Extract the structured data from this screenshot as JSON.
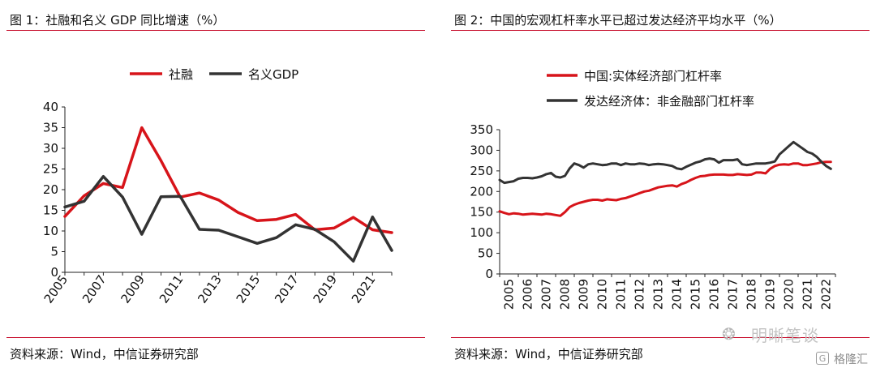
{
  "figures": [
    {
      "title": "图 1：社融和名义 GDP 同比增速（%）",
      "source": "资料来源：Wind，中信证券研究部"
    },
    {
      "title": "图 2：中国的宏观杠杆率水平已超过发达经济平均水平（%）",
      "source": "资料来源：Wind，中信证券研究部"
    }
  ],
  "watermark": {
    "icon": "wechat-icon",
    "text": "明晰笔谈"
  },
  "brand": {
    "icon": "gelonghui-logo-icon",
    "text": "格隆汇"
  },
  "chart_data": [
    {
      "type": "line",
      "title": "图 1：社融和名义 GDP 同比增速（%）",
      "xlabel": "",
      "ylabel": "",
      "ylim": [
        0,
        40
      ],
      "yticks": [
        0,
        5,
        10,
        15,
        20,
        25,
        30,
        35,
        40
      ],
      "xlim": [
        2005,
        2022
      ],
      "xticks": [
        "2005",
        "2007",
        "2009",
        "2011",
        "2013",
        "2015",
        "2017",
        "2019",
        "2021"
      ],
      "legend_position": "top",
      "grid": false,
      "x": [
        2005,
        2006,
        2007,
        2008,
        2009,
        2010,
        2011,
        2012,
        2013,
        2014,
        2015,
        2016,
        2017,
        2018,
        2019,
        2020,
        2021,
        2022
      ],
      "series": [
        {
          "name": "社融",
          "color": "#d7141a",
          "values": [
            13.5,
            18.5,
            21.5,
            20.5,
            35.0,
            27.0,
            18.2,
            19.2,
            17.5,
            14.5,
            12.5,
            12.8,
            14.0,
            10.3,
            10.7,
            13.3,
            10.3,
            9.6
          ]
        },
        {
          "name": "名义GDP",
          "color": "#333333",
          "values": [
            15.8,
            17.2,
            23.2,
            18.2,
            9.2,
            18.3,
            18.4,
            10.4,
            10.2,
            8.6,
            7.0,
            8.4,
            11.5,
            10.4,
            7.4,
            2.7,
            13.4,
            5.3
          ]
        }
      ]
    },
    {
      "type": "line",
      "title": "图 2：中国的宏观杠杆率水平已超过发达经济平均水平（%）",
      "xlabel": "",
      "ylabel": "",
      "ylim": [
        0,
        350
      ],
      "yticks": [
        0,
        50,
        100,
        150,
        200,
        250,
        300,
        350
      ],
      "xlim": [
        2005,
        2023
      ],
      "xticks": [
        "2005",
        "2006",
        "2007",
        "2008",
        "2009",
        "2010",
        "2011",
        "2012",
        "2013",
        "2014",
        "2015",
        "2016",
        "2017",
        "2018",
        "2019",
        "2020",
        "2021",
        "2022"
      ],
      "legend_position": "top-left",
      "grid": false,
      "x": [
        2005.0,
        2005.25,
        2005.5,
        2005.75,
        2006.0,
        2006.25,
        2006.5,
        2006.75,
        2007.0,
        2007.25,
        2007.5,
        2007.75,
        2008.0,
        2008.25,
        2008.5,
        2008.75,
        2009.0,
        2009.25,
        2009.5,
        2009.75,
        2010.0,
        2010.25,
        2010.5,
        2010.75,
        2011.0,
        2011.25,
        2011.5,
        2011.75,
        2012.0,
        2012.25,
        2012.5,
        2012.75,
        2013.0,
        2013.25,
        2013.5,
        2013.75,
        2014.0,
        2014.25,
        2014.5,
        2014.75,
        2015.0,
        2015.25,
        2015.5,
        2015.75,
        2016.0,
        2016.25,
        2016.5,
        2016.75,
        2017.0,
        2017.25,
        2017.5,
        2017.75,
        2018.0,
        2018.25,
        2018.5,
        2018.75,
        2019.0,
        2019.25,
        2019.5,
        2019.75,
        2020.0,
        2020.25,
        2020.5,
        2020.75,
        2021.0,
        2021.25,
        2021.5,
        2021.75,
        2022.0,
        2022.25,
        2022.5,
        2022.75
      ],
      "series": [
        {
          "name": "中国:实体经济部门杠杆率",
          "color": "#d7141a",
          "values": [
            152,
            148,
            145,
            147,
            146,
            144,
            145,
            146,
            145,
            144,
            146,
            145,
            143,
            141,
            150,
            162,
            168,
            172,
            175,
            178,
            180,
            180,
            178,
            181,
            180,
            179,
            182,
            184,
            188,
            192,
            196,
            200,
            202,
            206,
            210,
            212,
            214,
            215,
            212,
            218,
            222,
            228,
            233,
            237,
            238,
            240,
            241,
            241,
            241,
            240,
            240,
            242,
            241,
            240,
            241,
            246,
            246,
            244,
            255,
            262,
            265,
            266,
            265,
            268,
            268,
            264,
            264,
            266,
            268,
            271,
            272,
            272
          ]
        },
        {
          "name": "发达经济体：非金融部门杠杆率",
          "color": "#333333",
          "values": [
            228,
            221,
            223,
            225,
            231,
            233,
            233,
            232,
            234,
            237,
            242,
            245,
            236,
            234,
            238,
            256,
            268,
            264,
            258,
            266,
            268,
            266,
            264,
            265,
            268,
            268,
            264,
            268,
            266,
            266,
            268,
            267,
            264,
            266,
            267,
            266,
            264,
            262,
            256,
            254,
            260,
            265,
            270,
            273,
            278,
            280,
            278,
            270,
            276,
            276,
            276,
            278,
            266,
            264,
            266,
            268,
            268,
            268,
            270,
            273,
            290,
            300,
            310,
            320,
            312,
            304,
            296,
            292,
            284,
            272,
            262,
            255
          ]
        }
      ]
    }
  ]
}
